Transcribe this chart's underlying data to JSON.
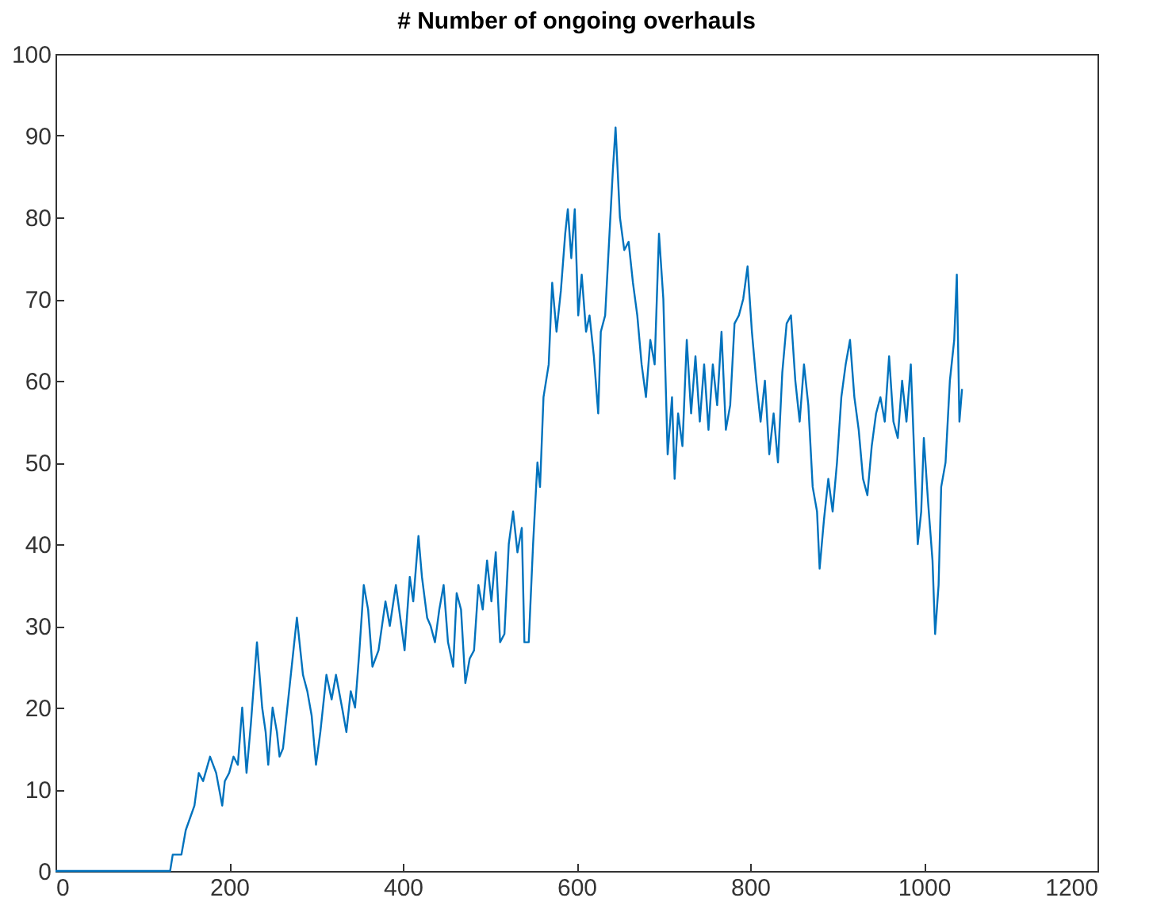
{
  "chart_data": {
    "type": "line",
    "title": "# Number of ongoing overhauls",
    "x": [
      0,
      50,
      100,
      132,
      135,
      145,
      150,
      160,
      165,
      170,
      178,
      185,
      192,
      195,
      200,
      205,
      210,
      215,
      220,
      225,
      232,
      238,
      242,
      245,
      250,
      255,
      258,
      262,
      270,
      278,
      285,
      290,
      295,
      300,
      305,
      312,
      318,
      323,
      330,
      335,
      340,
      345,
      350,
      355,
      360,
      365,
      372,
      380,
      385,
      392,
      397,
      402,
      408,
      412,
      418,
      422,
      428,
      432,
      437,
      442,
      447,
      452,
      458,
      462,
      467,
      472,
      477,
      482,
      487,
      492,
      497,
      502,
      507,
      512,
      517,
      522,
      527,
      532,
      537,
      540,
      545,
      550,
      555,
      558,
      562,
      568,
      572,
      577,
      582,
      587,
      590,
      594,
      598,
      602,
      606,
      611,
      615,
      620,
      625,
      628,
      633,
      638,
      642,
      645,
      650,
      655,
      660,
      665,
      670,
      675,
      680,
      685,
      690,
      695,
      700,
      705,
      710,
      713,
      717,
      722,
      727,
      732,
      737,
      742,
      747,
      752,
      757,
      762,
      767,
      772,
      777,
      782,
      787,
      792,
      797,
      802,
      807,
      812,
      817,
      822,
      827,
      832,
      837,
      842,
      847,
      852,
      857,
      862,
      867,
      872,
      877,
      880,
      885,
      890,
      895,
      900,
      905,
      910,
      915,
      920,
      925,
      930,
      935,
      940,
      945,
      950,
      955,
      960,
      965,
      970,
      975,
      980,
      985,
      990,
      993,
      997,
      1000,
      1005,
      1010,
      1013,
      1017,
      1020,
      1025,
      1030,
      1035,
      1038,
      1041,
      1044
    ],
    "series": [
      {
        "color": "#0072bd",
        "values": [
          0,
          0,
          0,
          0,
          2,
          2,
          5,
          8,
          12,
          11,
          14,
          12,
          8,
          11,
          12,
          14,
          13,
          20,
          12,
          18,
          28,
          20,
          17,
          13,
          20,
          17,
          14,
          15,
          23,
          31,
          24,
          22,
          19,
          13,
          17,
          24,
          21,
          24,
          20,
          17,
          22,
          20,
          27,
          35,
          32,
          25,
          27,
          33,
          30,
          35,
          31,
          27,
          36,
          33,
          41,
          36,
          31,
          30,
          28,
          32,
          35,
          28,
          25,
          34,
          32,
          23,
          26,
          27,
          35,
          32,
          38,
          33,
          39,
          28,
          29,
          40,
          44,
          39,
          42,
          28,
          28,
          40,
          50,
          47,
          58,
          62,
          72,
          66,
          71,
          78,
          81,
          75,
          81,
          68,
          73,
          66,
          68,
          63,
          56,
          66,
          68,
          78,
          86,
          91,
          80,
          76,
          77,
          72,
          68,
          62,
          58,
          65,
          62,
          78,
          70,
          51,
          58,
          48,
          56,
          52,
          65,
          56,
          63,
          55,
          62,
          54,
          62,
          57,
          66,
          54,
          57,
          67,
          68,
          70,
          74,
          66,
          60,
          55,
          60,
          51,
          56,
          50,
          61,
          67,
          68,
          60,
          55,
          62,
          57,
          47,
          44,
          37,
          43,
          48,
          44,
          50,
          58,
          62,
          65,
          58,
          54,
          48,
          46,
          52,
          56,
          58,
          55,
          63,
          55,
          53,
          60,
          55,
          62,
          48,
          40,
          44,
          53,
          45,
          38,
          29,
          35,
          47,
          50,
          60,
          65,
          73,
          55,
          59
        ]
      }
    ],
    "xlim": [
      0,
      1200
    ],
    "xticks": [
      0,
      200,
      400,
      600,
      800,
      1000,
      1200
    ],
    "ylim": [
      0,
      100
    ],
    "yticks": [
      0,
      10,
      20,
      30,
      40,
      50,
      60,
      70,
      80,
      90,
      100
    ],
    "grid": false
  }
}
